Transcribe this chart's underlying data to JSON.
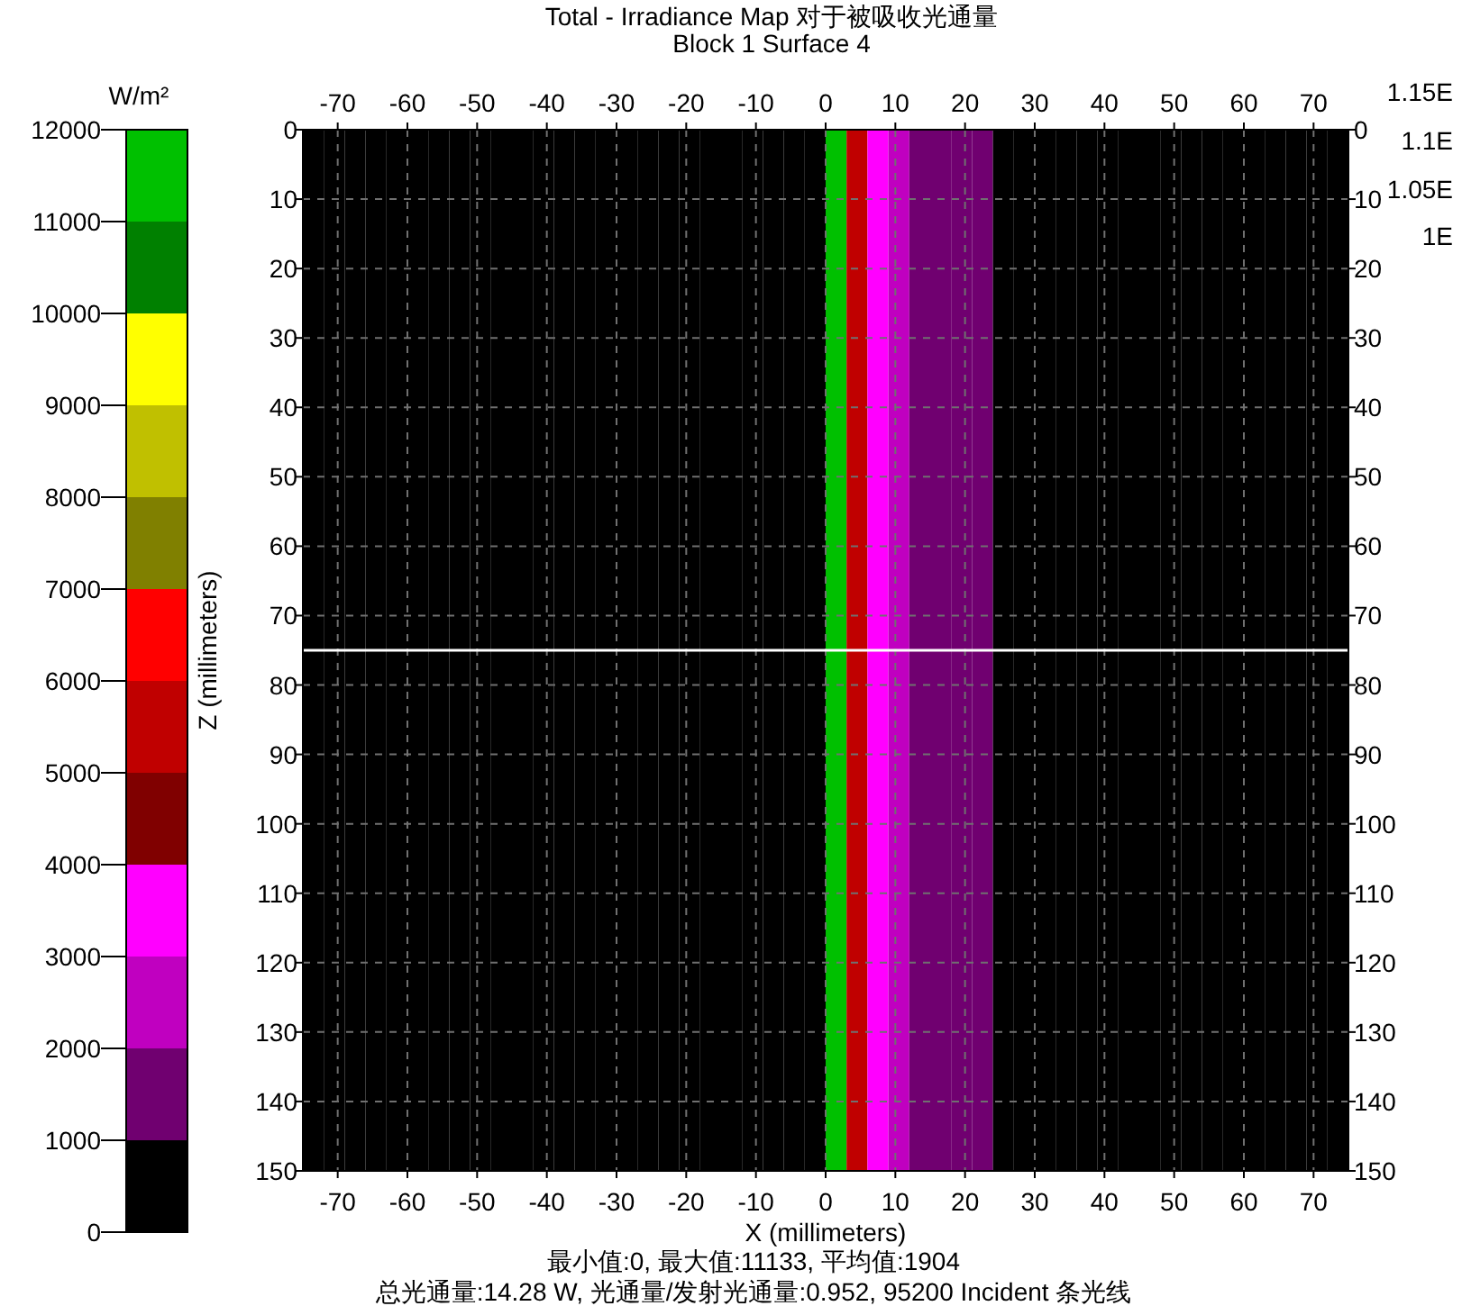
{
  "chart_data": {
    "type": "heatmap",
    "title": "Total - Irradiance Map 对于被吸收光通量",
    "subtitle": "Block 1 Surface 4",
    "xlabel": "X (millimeters)",
    "ylabel": "Z (millimeters)",
    "clabel": "W/m²",
    "x": [
      -73.5,
      -70.5,
      -67.5,
      -64.5,
      -61.5,
      -58.5,
      -55.5,
      -52.5,
      -49.5,
      -46.5,
      -43.5,
      -40.5,
      -37.5,
      -34.5,
      -31.5,
      -28.5,
      -25.5,
      -22.5,
      -19.5,
      -16.5,
      -13.5,
      -10.5,
      -7.5,
      -4.5,
      -1.5,
      1.5,
      4.5,
      7.5,
      10.5,
      13.5,
      16.5,
      19.5,
      22.5,
      25.5,
      28.5,
      31.5,
      34.5,
      37.5,
      40.5,
      43.5,
      46.5,
      49.5,
      52.5,
      55.5,
      58.5,
      61.5,
      64.5,
      67.5,
      70.5,
      73.5
    ],
    "cells": [
      [
        0,
        0,
        0,
        0,
        0,
        0,
        0,
        0,
        0,
        0,
        0,
        0,
        0,
        0,
        0,
        0,
        0,
        0,
        0,
        0,
        0,
        0,
        0,
        0,
        0,
        11133,
        5500,
        3500,
        2500,
        1500,
        1500,
        1500,
        1500,
        0,
        0,
        0,
        0,
        0,
        0,
        0,
        0,
        0,
        0,
        0,
        0,
        0,
        0,
        0,
        0,
        0
      ]
    ],
    "colors": [
      "#000000",
      "#700070",
      "#c000c0",
      "#ff00ff",
      "#800000",
      "#c00000",
      "#ff0000",
      "#808000",
      "#c0c000",
      "#ffff00",
      "#008000",
      "#00c000"
    ],
    "clim": [
      0,
      12000
    ],
    "cticks": [
      0,
      1000,
      2000,
      3000,
      4000,
      5000,
      6000,
      7000,
      8000,
      9000,
      10000,
      11000,
      12000
    ],
    "xlim": [
      -75,
      75
    ],
    "xticks": [
      -70,
      -60,
      -50,
      -40,
      -30,
      -20,
      -10,
      0,
      10,
      20,
      30,
      40,
      50,
      60,
      70
    ],
    "x2lim": [
      -75,
      75
    ],
    "x2ticks": [
      -70,
      -60,
      -50,
      -40,
      -30,
      -20,
      -10,
      0,
      10,
      20,
      30,
      40,
      50,
      60,
      70
    ],
    "ylim": [
      150,
      0
    ],
    "yticks": [
      0,
      10,
      20,
      30,
      40,
      50,
      60,
      70,
      80,
      90,
      100,
      110,
      120,
      130,
      140,
      150
    ],
    "y2lim": [
      150,
      0
    ],
    "y2ticks": [
      0,
      10,
      20,
      30,
      40,
      50,
      60,
      70,
      80,
      90,
      100,
      110,
      120,
      130,
      140,
      150
    ],
    "grid": true,
    "ref_lines": [
      {
        "axis": "y",
        "value": 75,
        "color": "#ffffff"
      }
    ],
    "annotations": [
      "最小值:0, 最大值:11133, 平均值:1904",
      "总光通量:14.28 W, 光通量/发射光通量:0.952, 95200 Incident 条光线",
      "1.15E",
      "1.1E",
      "1.05E",
      "1E"
    ]
  }
}
